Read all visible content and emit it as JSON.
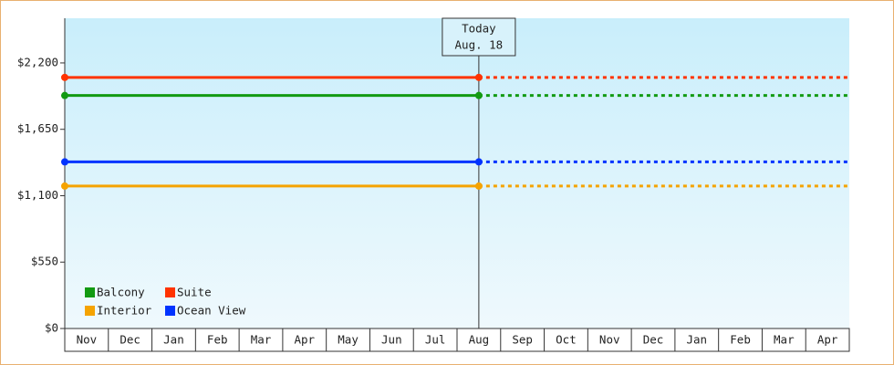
{
  "chart_data": {
    "type": "line",
    "annotation": [
      "Today",
      "Aug. 18"
    ],
    "categories": [
      "Nov",
      "Dec",
      "Jan",
      "Feb",
      "Mar",
      "Apr",
      "May",
      "Jun",
      "Jul",
      "Aug",
      "Sep",
      "Oct",
      "Nov",
      "Dec",
      "Jan",
      "Feb",
      "Mar",
      "Apr"
    ],
    "series": [
      {
        "name": "Balcony",
        "color": "#129a12",
        "value": 1930
      },
      {
        "name": "Suite",
        "color": "#ff3300",
        "value": 2080
      },
      {
        "name": "Interior",
        "color": "#f5a300",
        "value": 1180
      },
      {
        "name": "Ocean View",
        "color": "#0033ff",
        "value": 1380
      }
    ],
    "ylim": [
      0,
      2570
    ],
    "yticks": [
      {
        "value": 0,
        "label": "$0"
      },
      {
        "value": 550,
        "label": "$550"
      },
      {
        "value": 1100,
        "label": "$1,100"
      },
      {
        "value": 1650,
        "label": "$1,650"
      },
      {
        "value": 2200,
        "label": "$2,200"
      }
    ]
  }
}
